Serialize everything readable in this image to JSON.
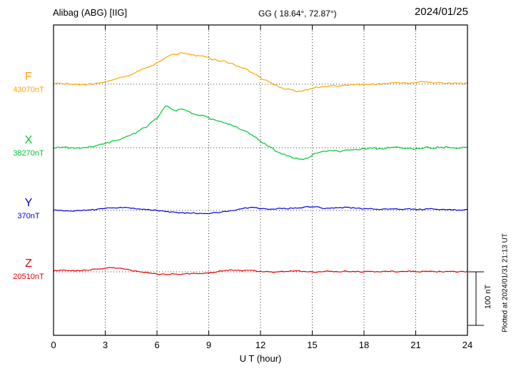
{
  "header": {
    "station": "Alibag (ABG)  [IIG]",
    "coords": "GG ( 18.64°,  72.87°)",
    "date": "2024/01/25"
  },
  "axis": {
    "ticks": [
      "0",
      "3",
      "6",
      "9",
      "12",
      "15",
      "18",
      "21",
      "24"
    ],
    "xlabel": "U T (hour)"
  },
  "scale": {
    "label": "100 nT",
    "nT": 100
  },
  "footer_note": "Plotted at 2024/01/31 21:13 UT",
  "colors": {
    "F": "#ffa500",
    "X": "#00c832",
    "Y": "#0000dd",
    "Z": "#e60000",
    "grid": "#000000"
  },
  "chart_data": {
    "type": "line",
    "title": "Alibag (ABG) [IIG] magnetogram 2024/01/25",
    "xlabel": "U T (hour)",
    "x_range": [
      0,
      24
    ],
    "x_step_hours": 0.5,
    "grid": "dotted vertical every 3 h, dotted horizontal baseline per component",
    "legend_position": "left labels per trace",
    "scale_bar_nT": 100,
    "series": [
      {
        "name": "F",
        "baseline_label": "43070nT",
        "baseline_nT": 43070,
        "color": "#ffa500",
        "values_delta_nT": [
          0,
          1,
          0,
          -1,
          0,
          2,
          5,
          9,
          13,
          18,
          25,
          32,
          40,
          50,
          56,
          58,
          55,
          53,
          50,
          44,
          42,
          36,
          30,
          22,
          12,
          4,
          -4,
          -9,
          -13,
          -12,
          -8,
          -5,
          -3,
          -4,
          -2,
          -1,
          0,
          1,
          0,
          2,
          3,
          2,
          3,
          4,
          2,
          3,
          2,
          1,
          2
        ]
      },
      {
        "name": "X",
        "baseline_label": "38270nT",
        "baseline_nT": 38270,
        "color": "#00c832",
        "values_delta_nT": [
          0,
          1,
          0,
          -1,
          1,
          4,
          8,
          13,
          18,
          24,
          32,
          42,
          55,
          78,
          70,
          72,
          64,
          60,
          56,
          50,
          46,
          40,
          33,
          24,
          12,
          2,
          -8,
          -15,
          -20,
          -22,
          -14,
          -8,
          -5,
          -7,
          -4,
          -3,
          -2,
          -1,
          -2,
          0,
          1,
          -1,
          -2,
          0,
          -1,
          1,
          0,
          -1,
          1
        ]
      },
      {
        "name": "Y",
        "baseline_label": "370nT",
        "baseline_nT": 370,
        "color": "#0000dd",
        "values_delta_nT": [
          0,
          0,
          -1,
          0,
          1,
          2,
          4,
          5,
          5,
          4,
          3,
          2,
          0,
          -2,
          -3,
          -4,
          -5,
          -5,
          -6,
          -4,
          -2,
          0,
          4,
          6,
          3,
          2,
          4,
          3,
          5,
          6,
          7,
          5,
          4,
          5,
          6,
          4,
          3,
          3,
          2,
          3,
          2,
          3,
          2,
          2,
          3,
          2,
          2,
          1,
          2
        ]
      },
      {
        "name": "Z",
        "baseline_label": "20510nT",
        "baseline_nT": 20510,
        "color": "#e60000",
        "values_delta_nT": [
          2,
          3,
          2,
          2,
          3,
          5,
          7,
          8,
          6,
          3,
          0,
          -2,
          -4,
          -5,
          -4,
          -4,
          -3,
          -3,
          -2,
          0,
          3,
          3,
          2,
          3,
          1,
          0,
          0,
          1,
          2,
          1,
          0,
          0,
          1,
          0,
          1,
          0,
          0,
          1,
          0,
          1,
          0,
          1,
          0,
          1,
          1,
          0,
          1,
          0,
          1
        ]
      }
    ]
  }
}
